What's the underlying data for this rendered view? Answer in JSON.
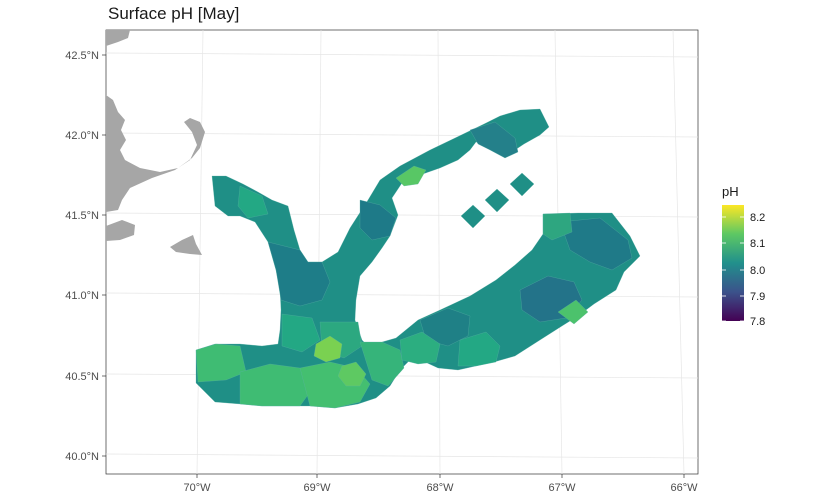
{
  "title": "Surface pH [May]",
  "x_ticks": [
    "70°W",
    "69°W",
    "68°W",
    "67°W",
    "66°W"
  ],
  "y_ticks": [
    "42.5°N",
    "42.0°N",
    "41.5°N",
    "41.0°N",
    "40.5°N",
    "40.0°N"
  ],
  "legend": {
    "title": "pH",
    "ticks": [
      "8.2",
      "8.1",
      "8.0",
      "7.9",
      "7.8"
    ],
    "range": [
      7.8,
      8.23
    ],
    "colors": [
      "#440154",
      "#3b528b",
      "#21908c",
      "#5dc863",
      "#fde725"
    ]
  },
  "colors": {
    "land": "#a6a6a6",
    "ph_main": "#1f8f86",
    "ph_dark": "#1f7a88",
    "ph_mid": "#22a884",
    "ph_high": "#3fbc73",
    "ph_highest": "#7ad151"
  }
}
